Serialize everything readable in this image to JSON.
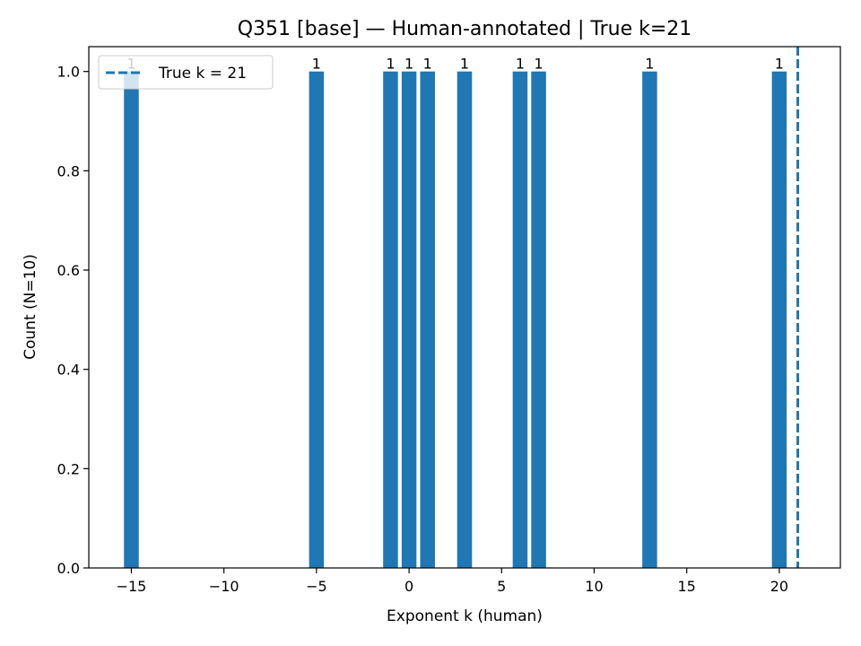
{
  "chart_data": {
    "type": "bar",
    "title": "Q351 [base] — Human-annotated | True k=21",
    "xlabel": "Exponent k (human)",
    "ylabel": "Count (N=10)",
    "x": [
      -15,
      -5,
      -1,
      0,
      1,
      3,
      6,
      7,
      13,
      20
    ],
    "values": [
      1,
      1,
      1,
      1,
      1,
      1,
      1,
      1,
      1,
      1
    ],
    "bar_labels": [
      "1",
      "1",
      "1",
      "1",
      "1",
      "1",
      "1",
      "1",
      "1",
      "1"
    ],
    "bar_width": 0.8,
    "xlim": [
      -17.3,
      23.3
    ],
    "ylim": [
      0,
      1.05
    ],
    "xticks": [
      -15,
      -10,
      -5,
      0,
      5,
      10,
      15,
      20
    ],
    "xtick_labels": [
      "−15",
      "−10",
      "−5",
      "0",
      "5",
      "10",
      "15",
      "20"
    ],
    "yticks": [
      0,
      0.2,
      0.4,
      0.6,
      0.8,
      1.0
    ],
    "ytick_labels": [
      "0.0",
      "0.2",
      "0.4",
      "0.6",
      "0.8",
      "1.0"
    ],
    "reference_line": {
      "x": 21,
      "style": "dashed",
      "label": "True k = 21"
    },
    "legend": {
      "placement": "upper-left",
      "entries": [
        "True k = 21"
      ]
    },
    "grid": false,
    "bar_color": "#1f77b4",
    "line_color": "#1f77b4"
  }
}
